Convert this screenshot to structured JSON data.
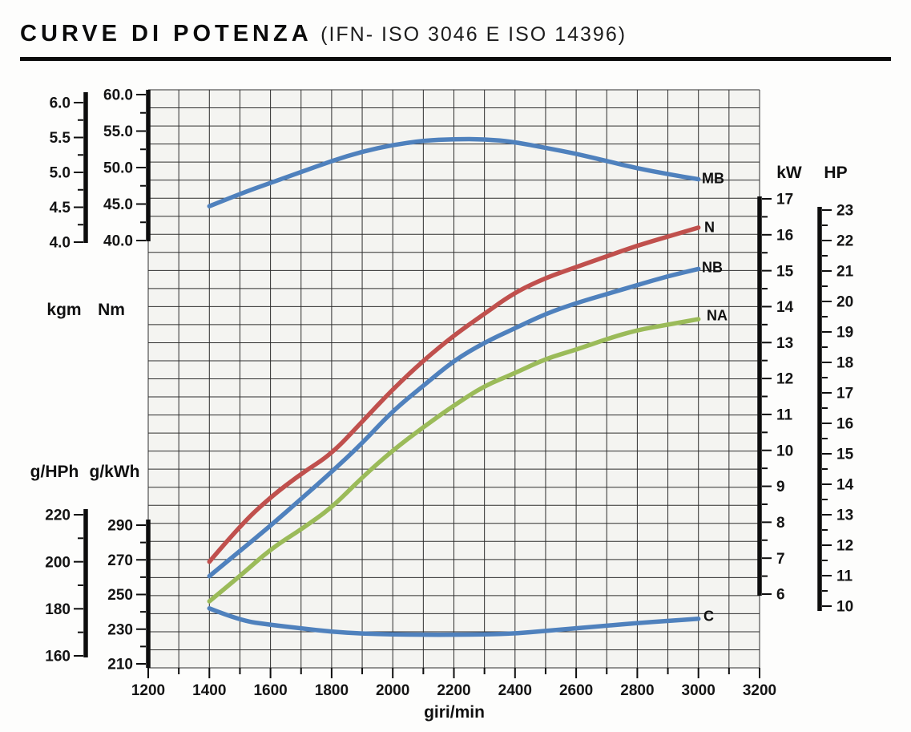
{
  "title": {
    "main": "CURVE DI POTENZA",
    "sub": "(IFN- ISO 3046 E ISO 14396)"
  },
  "chart_data": {
    "type": "line",
    "title": "CURVE DI POTENZA (IFN- ISO 3046 E ISO 14396)",
    "x_label": "giri/min",
    "x_range": [
      1200,
      3200
    ],
    "x_ticks": [
      "1200",
      "1400",
      "1600",
      "1800",
      "2000",
      "2200",
      "2400",
      "2600",
      "2800",
      "3000",
      "3200"
    ],
    "x_minor_step": 100,
    "grid": true,
    "plot_bg": "#f4f4f1",
    "grid_color": "#2e2e2e",
    "axes": {
      "kgm": {
        "unit": "kgm",
        "ticks": [
          "6.0",
          "5.5",
          "5.0",
          "4.5",
          "4.0"
        ]
      },
      "nm": {
        "unit": "Nm",
        "ticks": [
          "60.0",
          "55.0",
          "50.0",
          "45.0",
          "40.0"
        ]
      },
      "ghph": {
        "unit": "g/HPh",
        "ticks": [
          "220",
          "200",
          "180",
          "160"
        ]
      },
      "gkwh": {
        "unit": "g/kWh",
        "ticks": [
          "290",
          "270",
          "250",
          "230",
          "210"
        ]
      },
      "kw": {
        "unit": "kW",
        "ticks": [
          "17",
          "16",
          "15",
          "14",
          "13",
          "12",
          "11",
          "10",
          "9",
          "8",
          "7",
          "6"
        ]
      },
      "hp": {
        "unit": "HP",
        "ticks": [
          "23",
          "22",
          "21",
          "20",
          "19",
          "18",
          "17",
          "16",
          "15",
          "14",
          "13",
          "12",
          "11",
          "10"
        ]
      }
    },
    "x_rpm": [
      1400,
      1500,
      1600,
      1700,
      1800,
      1900,
      2000,
      2100,
      2200,
      2300,
      2400,
      2500,
      2600,
      2700,
      2800,
      2900,
      3000
    ],
    "series": [
      {
        "label": "MB",
        "axis": "nm",
        "unit": "Nm",
        "color": "#4F81BD",
        "values": [
          44.7,
          46.4,
          47.9,
          49.4,
          50.9,
          52.2,
          53.1,
          53.7,
          53.9,
          53.9,
          53.5,
          52.7,
          51.9,
          50.9,
          49.9,
          49.1,
          48.4
        ]
      },
      {
        "label": "N",
        "axis": "kw",
        "unit": "kW",
        "color": "#C0504D",
        "values": [
          6.9,
          7.9,
          8.7,
          9.35,
          9.9,
          10.8,
          11.7,
          12.5,
          13.2,
          13.8,
          14.4,
          14.8,
          15.1,
          15.4,
          15.7,
          15.95,
          16.2
        ]
      },
      {
        "label": "NB",
        "axis": "kw",
        "unit": "kW",
        "color": "#4F81BD",
        "values": [
          6.5,
          7.2,
          7.9,
          8.65,
          9.4,
          10.2,
          11.1,
          11.8,
          12.5,
          13.0,
          13.4,
          13.8,
          14.1,
          14.35,
          14.6,
          14.85,
          15.05
        ]
      },
      {
        "label": "NA",
        "axis": "kw",
        "unit": "kW",
        "color": "#9BBB59",
        "values": [
          5.8,
          6.5,
          7.25,
          7.8,
          8.4,
          9.25,
          10.0,
          10.65,
          11.25,
          11.8,
          12.15,
          12.55,
          12.8,
          13.1,
          13.35,
          13.5,
          13.65
        ]
      },
      {
        "label": "C",
        "axis": "gkwh",
        "unit": "g/kWh",
        "color": "#4F81BD",
        "values": [
          242,
          235,
          232.5,
          230.5,
          228.5,
          227.5,
          227,
          226.8,
          226.8,
          227,
          227.5,
          229,
          230.5,
          232,
          233.5,
          234.8,
          236
        ]
      }
    ]
  }
}
